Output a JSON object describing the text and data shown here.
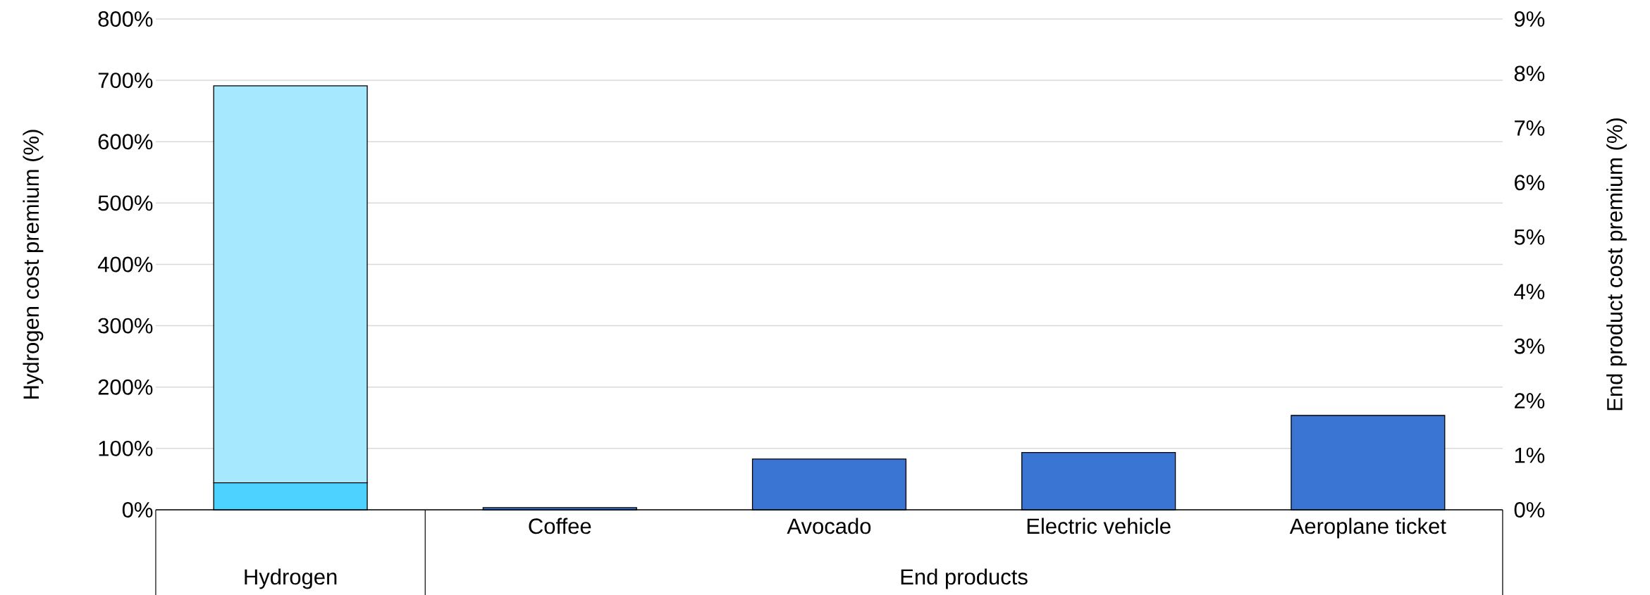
{
  "chart_data": {
    "type": "bar",
    "ylabel": "Hydrogen cost premium (%)",
    "y2label": "End product cost premium (%)",
    "categories": [
      null,
      "Coffee",
      "Avocado",
      "Electric vehicle",
      "Aeroplane ticket"
    ],
    "series": [
      {
        "color": "#4dd2ff",
        "values": [
          44,
          null,
          null,
          null,
          null
        ],
        "axis": "y"
      },
      {
        "color": "#a6e9ff",
        "values": [
          647,
          null,
          null,
          null,
          null
        ],
        "axis": "y"
      },
      {
        "color": "#3a75d4",
        "values": [
          null,
          0.04,
          0.93,
          1.05,
          1.73
        ],
        "axis": "y2"
      }
    ],
    "stacked": true,
    "ylim": [
      0,
      800
    ],
    "yticks": [
      {
        "value": 0,
        "label": "0%"
      },
      {
        "value": 100,
        "label": "100%"
      },
      {
        "value": 200,
        "label": "200%"
      },
      {
        "value": 300,
        "label": "300%"
      },
      {
        "value": 400,
        "label": "400%"
      },
      {
        "value": 500,
        "label": "500%"
      },
      {
        "value": 600,
        "label": "600%"
      },
      {
        "value": 700,
        "label": "700%"
      },
      {
        "value": 800,
        "label": "800%"
      }
    ],
    "y2lim": [
      0,
      9
    ],
    "y2ticks": [
      {
        "value": 0,
        "label": "0%"
      },
      {
        "value": 1,
        "label": "1%"
      },
      {
        "value": 2,
        "label": "2%"
      },
      {
        "value": 3,
        "label": "3%"
      },
      {
        "value": 4,
        "label": "4%"
      },
      {
        "value": 5,
        "label": "5%"
      },
      {
        "value": 6,
        "label": "6%"
      },
      {
        "value": 7,
        "label": "7%"
      },
      {
        "value": 8,
        "label": "8%"
      },
      {
        "value": 9,
        "label": "9%"
      }
    ],
    "grid": "y",
    "annotations": [
      "Hydrogen",
      "End products"
    ]
  }
}
